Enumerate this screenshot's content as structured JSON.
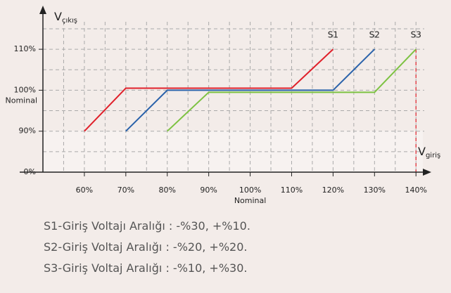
{
  "chart_data": {
    "type": "line",
    "y_label": {
      "main": "V",
      "sub": "çıkış"
    },
    "x_label": {
      "main": "V",
      "sub": "giriş"
    },
    "xlim": [
      50,
      142
    ],
    "xticks": [
      {
        "value": 60,
        "label": "60%"
      },
      {
        "value": 70,
        "label": "70%"
      },
      {
        "value": 80,
        "label": "80%"
      },
      {
        "value": 90,
        "label": "90%"
      },
      {
        "value": 100,
        "label": "100%",
        "sublabel": "Nominal"
      },
      {
        "value": 110,
        "label": "110%"
      },
      {
        "value": 120,
        "label": "120%"
      },
      {
        "value": 130,
        "label": "130%"
      },
      {
        "value": 140,
        "label": "140%"
      }
    ],
    "ylim": [
      0,
      115
    ],
    "yticks": [
      {
        "value": 0,
        "label": "0%"
      },
      {
        "value": 90,
        "label": "90%"
      },
      {
        "value": 100,
        "label": "100%",
        "sublabel": "Nominal"
      },
      {
        "value": 110,
        "label": "110%"
      }
    ],
    "grid": true,
    "series": [
      {
        "name": "S1",
        "color": "#e0202a",
        "x": [
          60,
          70,
          110,
          120
        ],
        "values": [
          90,
          100.5,
          100.5,
          110
        ]
      },
      {
        "name": "S2",
        "color": "#2a62aa",
        "x": [
          70,
          80,
          120,
          130
        ],
        "values": [
          90,
          100,
          100,
          110
        ]
      },
      {
        "name": "S3",
        "color": "#7dc242",
        "x": [
          80,
          90,
          130,
          140
        ],
        "values": [
          90,
          99.5,
          99.5,
          110
        ]
      }
    ],
    "vline": {
      "x": 140,
      "color": "#e0202a"
    }
  },
  "notes": [
    "S1-Giriş Voltajı Aralığı : -%30, +%10.",
    "S2-Giriş Voltaj Aralığı : -%20, +%20.",
    "S3-Giriş Voltaj Aralığı : -%10, +%30."
  ]
}
